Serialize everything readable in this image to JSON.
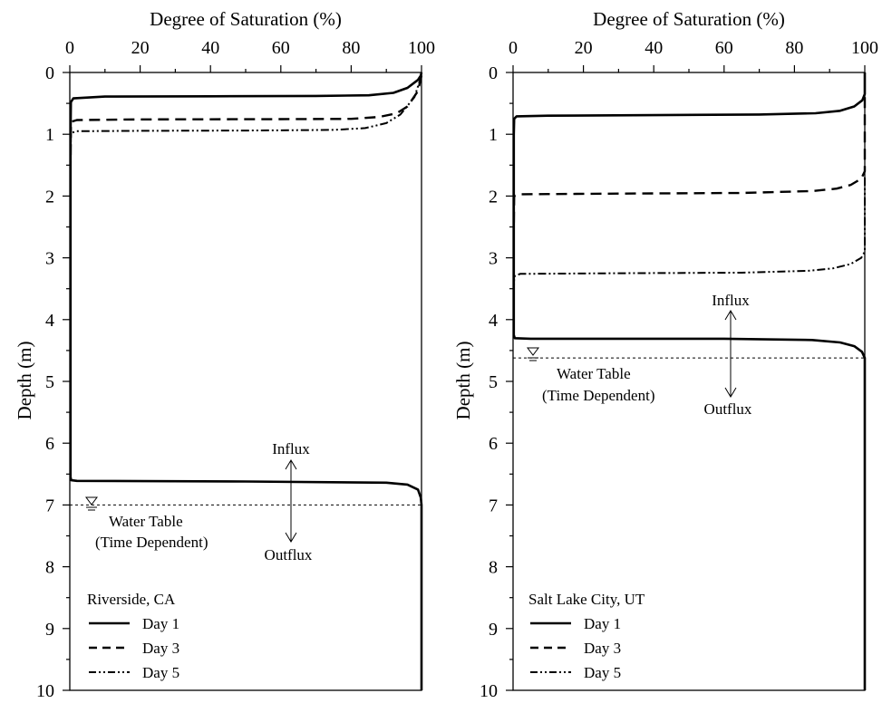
{
  "colors": {
    "background": "#ffffff",
    "ink": "#000000"
  },
  "chart_data": [
    {
      "type": "line",
      "title": "",
      "xlabel": "Degree of Saturation (%)",
      "ylabel": "Depth (m)",
      "xlim": [
        0,
        100
      ],
      "ylim": [
        0,
        10
      ],
      "y_inverted": true,
      "x_axis_position": "top",
      "xticks": [
        "0",
        "20",
        "40",
        "60",
        "80",
        "100"
      ],
      "yticks": [
        "0",
        "1",
        "2",
        "3",
        "4",
        "5",
        "6",
        "7",
        "8",
        "9",
        "10"
      ],
      "grid": false,
      "legend": {
        "title": "Riverside, CA",
        "position": "bottom-left"
      },
      "series": [
        {
          "name": "Day 1",
          "style": "solid",
          "points": [
            [
              100,
              0
            ],
            [
              99.8,
              0.05
            ],
            [
              99,
              0.12
            ],
            [
              96,
              0.25
            ],
            [
              92,
              0.33
            ],
            [
              85,
              0.37
            ],
            [
              70,
              0.38
            ],
            [
              40,
              0.385
            ],
            [
              10,
              0.39
            ],
            [
              1,
              0.42
            ],
            [
              0.3,
              0.48
            ],
            [
              0.2,
              1.0
            ],
            [
              0.2,
              6.55
            ],
            [
              0.4,
              6.6
            ],
            [
              2,
              6.61
            ],
            [
              50,
              6.62
            ],
            [
              90,
              6.64
            ],
            [
              96,
              6.67
            ],
            [
              99,
              6.75
            ],
            [
              99.8,
              6.88
            ],
            [
              100,
              7.0
            ],
            [
              100,
              10
            ]
          ]
        },
        {
          "name": "Day 3",
          "style": "dashed",
          "points": [
            [
              100,
              0.05
            ],
            [
              99,
              0.3
            ],
            [
              96,
              0.55
            ],
            [
              93,
              0.66
            ],
            [
              88,
              0.72
            ],
            [
              80,
              0.75
            ],
            [
              60,
              0.755
            ],
            [
              20,
              0.76
            ],
            [
              2,
              0.77
            ],
            [
              0.3,
              0.8
            ],
            [
              0.2,
              1.5
            ],
            [
              0.2,
              6.55
            ]
          ]
        },
        {
          "name": "Day 5",
          "style": "dash-dot-dot",
          "points": [
            [
              100,
              0.05
            ],
            [
              98,
              0.4
            ],
            [
              94,
              0.68
            ],
            [
              90,
              0.82
            ],
            [
              84,
              0.9
            ],
            [
              75,
              0.93
            ],
            [
              50,
              0.94
            ],
            [
              20,
              0.945
            ],
            [
              2,
              0.95
            ],
            [
              0.3,
              0.98
            ],
            [
              0.2,
              1.5
            ],
            [
              0.2,
              6.55
            ]
          ]
        }
      ],
      "water_table_depth": 7.0,
      "annotations": {
        "influx": "Influx",
        "outflux": "Outflux",
        "water_table": "Water Table",
        "water_table_note": "(Time Dependent)"
      }
    },
    {
      "type": "line",
      "title": "",
      "xlabel": "Degree of Saturation (%)",
      "ylabel": "Depth (m)",
      "xlim": [
        0,
        100
      ],
      "ylim": [
        0,
        10
      ],
      "y_inverted": true,
      "x_axis_position": "top",
      "xticks": [
        "0",
        "20",
        "40",
        "60",
        "80",
        "100"
      ],
      "yticks": [
        "0",
        "1",
        "2",
        "3",
        "4",
        "5",
        "6",
        "7",
        "8",
        "9",
        "10"
      ],
      "grid": false,
      "legend": {
        "title": "Salt Lake City, UT",
        "position": "bottom-left"
      },
      "series": [
        {
          "name": "Day 1",
          "style": "solid",
          "points": [
            [
              100,
              0
            ],
            [
              100,
              0.35
            ],
            [
              99.3,
              0.45
            ],
            [
              97,
              0.55
            ],
            [
              93,
              0.62
            ],
            [
              86,
              0.66
            ],
            [
              70,
              0.68
            ],
            [
              40,
              0.69
            ],
            [
              10,
              0.7
            ],
            [
              1,
              0.71
            ],
            [
              0.3,
              0.75
            ],
            [
              0.2,
              1.0
            ],
            [
              0.2,
              4.25
            ],
            [
              0.5,
              4.3
            ],
            [
              5,
              4.31
            ],
            [
              60,
              4.31
            ],
            [
              85,
              4.33
            ],
            [
              93,
              4.37
            ],
            [
              97,
              4.43
            ],
            [
              99.2,
              4.52
            ],
            [
              100,
              4.62
            ],
            [
              100,
              10
            ]
          ]
        },
        {
          "name": "Day 3",
          "style": "dashed",
          "points": [
            [
              100,
              0.4
            ],
            [
              100,
              1.6
            ],
            [
              99,
              1.72
            ],
            [
              96,
              1.82
            ],
            [
              92,
              1.88
            ],
            [
              85,
              1.92
            ],
            [
              65,
              1.95
            ],
            [
              30,
              1.96
            ],
            [
              2,
              1.97
            ],
            [
              0.3,
              2.0
            ],
            [
              0.2,
              2.5
            ],
            [
              0.2,
              4.25
            ]
          ]
        },
        {
          "name": "Day 5",
          "style": "dash-dot-dot",
          "points": [
            [
              100,
              1.7
            ],
            [
              100,
              2.9
            ],
            [
              99,
              3.0
            ],
            [
              96,
              3.1
            ],
            [
              91,
              3.17
            ],
            [
              84,
              3.21
            ],
            [
              65,
              3.24
            ],
            [
              30,
              3.25
            ],
            [
              2,
              3.26
            ],
            [
              0.3,
              3.3
            ],
            [
              0.2,
              3.6
            ],
            [
              0.2,
              4.25
            ]
          ]
        }
      ],
      "water_table_depth": 4.62,
      "annotations": {
        "influx": "Influx",
        "outflux": "Outflux",
        "water_table": "Water Table",
        "water_table_note": "(Time Dependent)"
      }
    }
  ]
}
